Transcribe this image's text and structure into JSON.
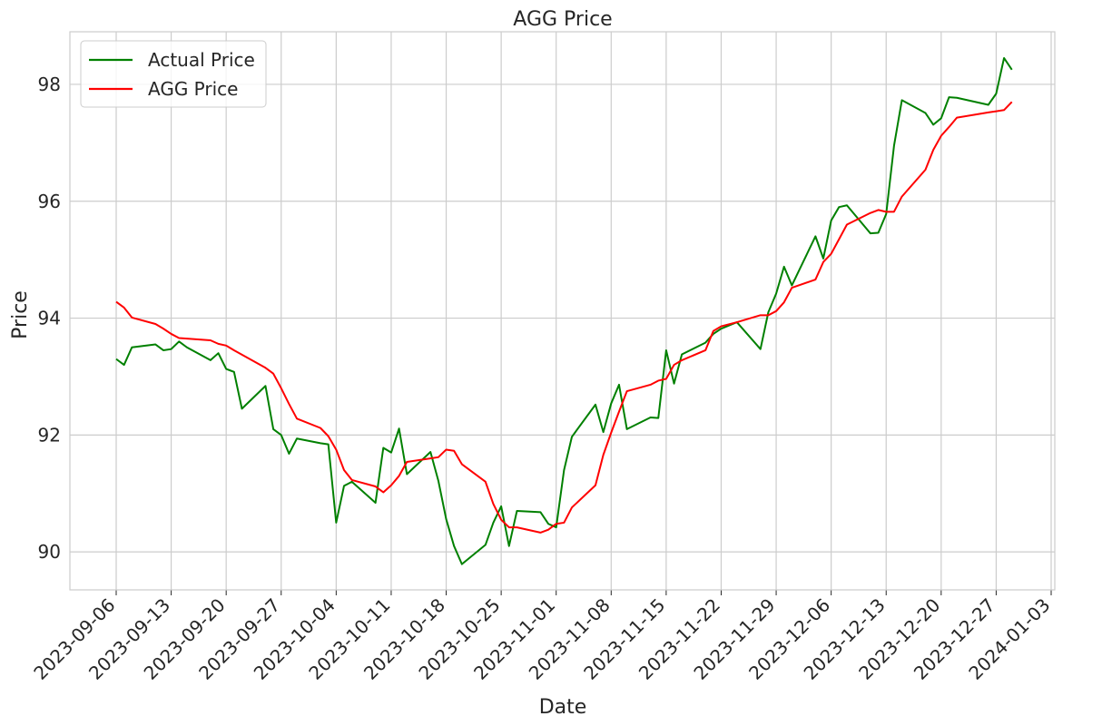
{
  "chart_data": {
    "type": "line",
    "title": "AGG Price",
    "xlabel": "Date",
    "ylabel": "Price",
    "x_ticks": [
      "2023-09-06",
      "2023-09-13",
      "2023-09-20",
      "2023-09-27",
      "2023-10-04",
      "2023-10-11",
      "2023-10-18",
      "2023-10-25",
      "2023-11-01",
      "2023-11-08",
      "2023-11-15",
      "2023-11-22",
      "2023-11-29",
      "2023-12-06",
      "2023-12-13",
      "2023-12-20",
      "2023-12-27",
      "2024-01-03"
    ],
    "y_ticks": [
      90,
      92,
      94,
      96,
      98
    ],
    "ylim": [
      89.35,
      98.9
    ],
    "xlim": [
      "2023-09-02",
      "2024-01-03"
    ],
    "grid": true,
    "legend": "top-left",
    "series": [
      {
        "name": "Actual Price",
        "color": "#008000",
        "points": [
          [
            "2023-09-06",
            93.3
          ],
          [
            "2023-09-07",
            93.2
          ],
          [
            "2023-09-08",
            93.5
          ],
          [
            "2023-09-11",
            93.55
          ],
          [
            "2023-09-12",
            93.45
          ],
          [
            "2023-09-13",
            93.47
          ],
          [
            "2023-09-14",
            93.6
          ],
          [
            "2023-09-15",
            93.5
          ],
          [
            "2023-09-18",
            93.28
          ],
          [
            "2023-09-19",
            93.4
          ],
          [
            "2023-09-20",
            93.13
          ],
          [
            "2023-09-21",
            93.08
          ],
          [
            "2023-09-22",
            92.45
          ],
          [
            "2023-09-25",
            92.84
          ],
          [
            "2023-09-26",
            92.1
          ],
          [
            "2023-09-27",
            92.0
          ],
          [
            "2023-09-28",
            91.68
          ],
          [
            "2023-09-29",
            91.94
          ],
          [
            "2023-10-02",
            91.86
          ],
          [
            "2023-10-03",
            91.84
          ],
          [
            "2023-10-04",
            90.5
          ],
          [
            "2023-10-05",
            91.13
          ],
          [
            "2023-10-06",
            91.2
          ],
          [
            "2023-10-09",
            90.84
          ],
          [
            "2023-10-10",
            91.78
          ],
          [
            "2023-10-11",
            91.7
          ],
          [
            "2023-10-12",
            92.11
          ],
          [
            "2023-10-13",
            91.33
          ],
          [
            "2023-10-16",
            91.71
          ],
          [
            "2023-10-17",
            91.22
          ],
          [
            "2023-10-18",
            90.56
          ],
          [
            "2023-10-19",
            90.1
          ],
          [
            "2023-10-20",
            89.79
          ],
          [
            "2023-10-23",
            90.12
          ],
          [
            "2023-10-24",
            90.5
          ],
          [
            "2023-10-25",
            90.78
          ],
          [
            "2023-10-26",
            90.1
          ],
          [
            "2023-10-27",
            90.7
          ],
          [
            "2023-10-30",
            90.68
          ],
          [
            "2023-10-31",
            90.48
          ],
          [
            "2023-11-01",
            90.42
          ],
          [
            "2023-11-02",
            91.4
          ],
          [
            "2023-11-03",
            91.97
          ],
          [
            "2023-11-06",
            92.52
          ],
          [
            "2023-11-07",
            92.05
          ],
          [
            "2023-11-08",
            92.54
          ],
          [
            "2023-11-09",
            92.86
          ],
          [
            "2023-11-10",
            92.1
          ],
          [
            "2023-11-13",
            92.3
          ],
          [
            "2023-11-14",
            92.29
          ],
          [
            "2023-11-15",
            93.45
          ],
          [
            "2023-11-16",
            92.88
          ],
          [
            "2023-11-17",
            93.38
          ],
          [
            "2023-11-20",
            93.58
          ],
          [
            "2023-11-21",
            93.73
          ],
          [
            "2023-11-22",
            93.82
          ],
          [
            "2023-11-24",
            93.93
          ],
          [
            "2023-11-27",
            93.47
          ],
          [
            "2023-11-28",
            94.1
          ],
          [
            "2023-11-29",
            94.42
          ],
          [
            "2023-11-30",
            94.88
          ],
          [
            "2023-12-01",
            94.56
          ],
          [
            "2023-12-04",
            95.4
          ],
          [
            "2023-12-05",
            95.02
          ],
          [
            "2023-12-06",
            95.67
          ],
          [
            "2023-12-07",
            95.9
          ],
          [
            "2023-12-08",
            95.93
          ],
          [
            "2023-12-11",
            95.45
          ],
          [
            "2023-12-12",
            95.46
          ],
          [
            "2023-12-13",
            95.78
          ],
          [
            "2023-12-14",
            96.95
          ],
          [
            "2023-12-15",
            97.73
          ],
          [
            "2023-12-18",
            97.51
          ],
          [
            "2023-12-19",
            97.31
          ],
          [
            "2023-12-20",
            97.42
          ],
          [
            "2023-12-21",
            97.78
          ],
          [
            "2023-12-22",
            97.77
          ],
          [
            "2023-12-26",
            97.65
          ],
          [
            "2023-12-27",
            97.84
          ],
          [
            "2023-12-28",
            98.45
          ],
          [
            "2023-12-29",
            98.25
          ]
        ]
      },
      {
        "name": "AGG Price",
        "color": "#ff0000",
        "points": [
          [
            "2023-09-06",
            94.28
          ],
          [
            "2023-09-07",
            94.18
          ],
          [
            "2023-09-08",
            94.01
          ],
          [
            "2023-09-11",
            93.9
          ],
          [
            "2023-09-12",
            93.82
          ],
          [
            "2023-09-13",
            93.73
          ],
          [
            "2023-09-14",
            93.66
          ],
          [
            "2023-09-18",
            93.62
          ],
          [
            "2023-09-19",
            93.56
          ],
          [
            "2023-09-20",
            93.53
          ],
          [
            "2023-09-21",
            93.45
          ],
          [
            "2023-09-25",
            93.15
          ],
          [
            "2023-09-26",
            93.05
          ],
          [
            "2023-09-27",
            92.8
          ],
          [
            "2023-09-28",
            92.53
          ],
          [
            "2023-09-29",
            92.28
          ],
          [
            "2023-10-02",
            92.12
          ],
          [
            "2023-10-03",
            91.98
          ],
          [
            "2023-10-04",
            91.75
          ],
          [
            "2023-10-05",
            91.4
          ],
          [
            "2023-10-06",
            91.23
          ],
          [
            "2023-10-09",
            91.12
          ],
          [
            "2023-10-10",
            91.02
          ],
          [
            "2023-10-11",
            91.14
          ],
          [
            "2023-10-12",
            91.3
          ],
          [
            "2023-10-13",
            91.54
          ],
          [
            "2023-10-16",
            91.6
          ],
          [
            "2023-10-17",
            91.62
          ],
          [
            "2023-10-18",
            91.75
          ],
          [
            "2023-10-19",
            91.73
          ],
          [
            "2023-10-20",
            91.5
          ],
          [
            "2023-10-23",
            91.2
          ],
          [
            "2023-10-24",
            90.82
          ],
          [
            "2023-10-25",
            90.55
          ],
          [
            "2023-10-26",
            90.42
          ],
          [
            "2023-10-27",
            90.42
          ],
          [
            "2023-10-30",
            90.33
          ],
          [
            "2023-10-31",
            90.38
          ],
          [
            "2023-11-01",
            90.48
          ],
          [
            "2023-11-02",
            90.5
          ],
          [
            "2023-11-03",
            90.76
          ],
          [
            "2023-11-06",
            91.14
          ],
          [
            "2023-11-07",
            91.66
          ],
          [
            "2023-11-08",
            92.04
          ],
          [
            "2023-11-09",
            92.4
          ],
          [
            "2023-11-10",
            92.75
          ],
          [
            "2023-11-13",
            92.86
          ],
          [
            "2023-11-14",
            92.93
          ],
          [
            "2023-11-15",
            92.96
          ],
          [
            "2023-11-16",
            93.2
          ],
          [
            "2023-11-17",
            93.28
          ],
          [
            "2023-11-20",
            93.45
          ],
          [
            "2023-11-21",
            93.78
          ],
          [
            "2023-11-22",
            93.86
          ],
          [
            "2023-11-24",
            93.93
          ],
          [
            "2023-11-27",
            94.05
          ],
          [
            "2023-11-28",
            94.05
          ],
          [
            "2023-11-29",
            94.12
          ],
          [
            "2023-11-30",
            94.27
          ],
          [
            "2023-12-01",
            94.52
          ],
          [
            "2023-12-04",
            94.66
          ],
          [
            "2023-12-05",
            94.96
          ],
          [
            "2023-12-06",
            95.1
          ],
          [
            "2023-12-07",
            95.35
          ],
          [
            "2023-12-08",
            95.6
          ],
          [
            "2023-12-11",
            95.8
          ],
          [
            "2023-12-12",
            95.85
          ],
          [
            "2023-12-13",
            95.82
          ],
          [
            "2023-12-14",
            95.82
          ],
          [
            "2023-12-15",
            96.08
          ],
          [
            "2023-12-18",
            96.54
          ],
          [
            "2023-12-19",
            96.88
          ],
          [
            "2023-12-20",
            97.12
          ],
          [
            "2023-12-21",
            97.27
          ],
          [
            "2023-12-22",
            97.43
          ],
          [
            "2023-12-26",
            97.52
          ],
          [
            "2023-12-27",
            97.54
          ],
          [
            "2023-12-28",
            97.56
          ],
          [
            "2023-12-29",
            97.7
          ]
        ]
      }
    ]
  }
}
